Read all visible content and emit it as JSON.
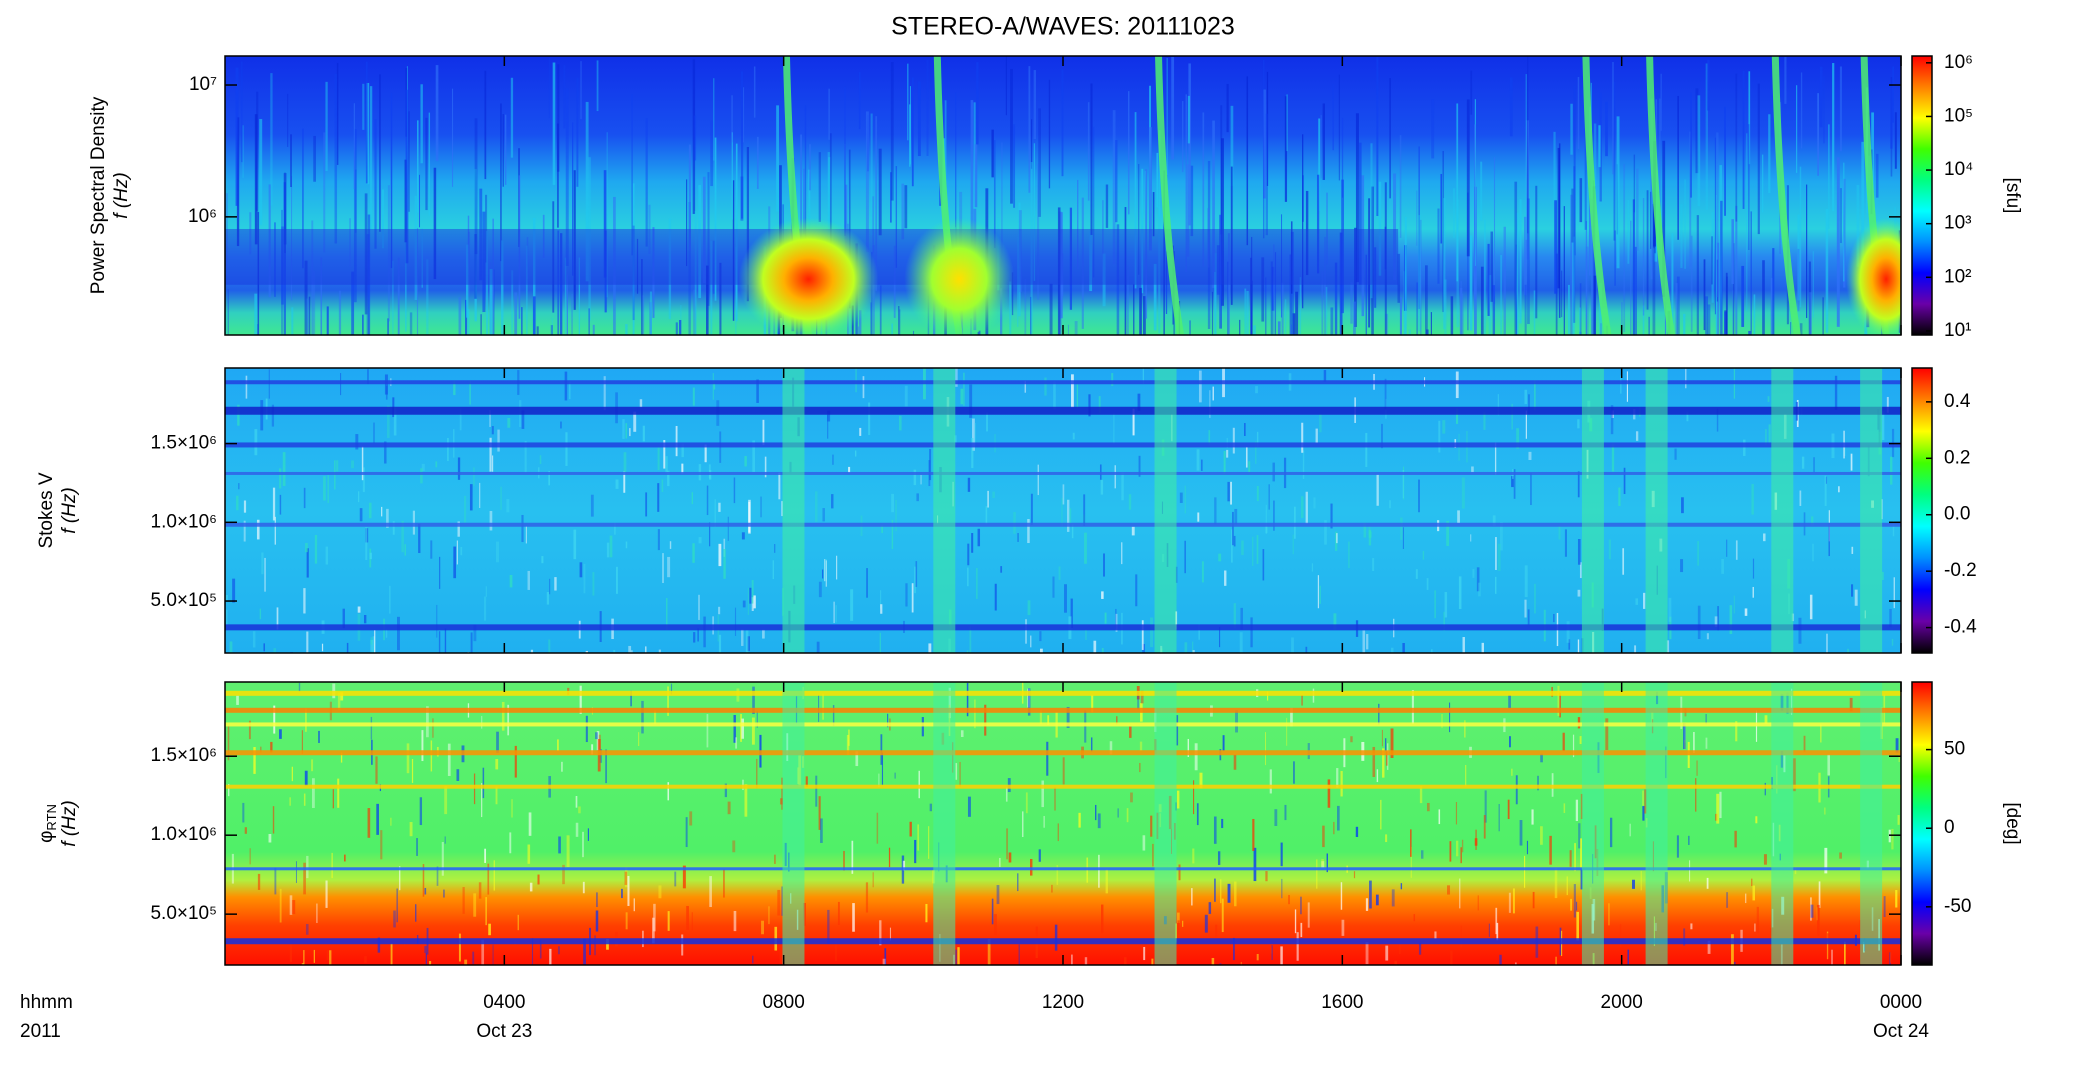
{
  "chart_data": [
    {
      "type": "heatmap",
      "title": "STEREO-A/WAVES: 20111023",
      "ylabel": "Power Spectral Density",
      "ylabel2": "f (Hz)",
      "yscale": "log",
      "ylim": [
        127000,
        16600000
      ],
      "yticks": [
        {
          "value": 1000000,
          "label": "10⁶"
        },
        {
          "value": 10000000,
          "label": "10⁷"
        }
      ],
      "cscale": "log",
      "clim": [
        8.4,
        1340000
      ],
      "cticks": [
        {
          "value": 10,
          "label": "10¹"
        },
        {
          "value": 100,
          "label": "10²"
        },
        {
          "value": 1000,
          "label": "10³"
        },
        {
          "value": 10000,
          "label": "10⁴"
        },
        {
          "value": 100000,
          "label": "10⁵"
        },
        {
          "value": 1000000,
          "label": "10⁶"
        }
      ],
      "clabel": "[sfu]",
      "colormap": [
        "#000000",
        "#6a00a8",
        "#0000ff",
        "#0090ff",
        "#00ffff",
        "#00ff80",
        "#40ff00",
        "#ffff00",
        "#ff8000",
        "#ff0000"
      ]
    },
    {
      "type": "heatmap",
      "ylabel": "Stokes V",
      "ylabel2": "f (Hz)",
      "yscale": "linear",
      "ylim": [
        170000,
        1980000
      ],
      "yticks": [
        {
          "value": 500000,
          "label": "5.0×10⁵"
        },
        {
          "value": 1000000,
          "label": "1.0×10⁶"
        },
        {
          "value": 1500000,
          "label": "1.5×10⁶"
        }
      ],
      "cscale": "linear",
      "clim": [
        -0.49,
        0.52
      ],
      "cticks": [
        -0.4,
        -0.2,
        {
          "value": 0,
          "label": "0.0"
        },
        0.2,
        0.4
      ],
      "colormap": [
        "#000000",
        "#6a00a8",
        "#0000ff",
        "#0090ff",
        "#00ffff",
        "#00ff80",
        "#40ff00",
        "#ffff00",
        "#ff8000",
        "#ff0000"
      ]
    },
    {
      "type": "heatmap",
      "ylabel": "φ",
      "ylabel_sub": "RTN",
      "ylabel2": "f (Hz)",
      "yscale": "linear",
      "ylim": [
        178000,
        1970000
      ],
      "yticks": [
        {
          "value": 500000,
          "label": "5.0×10⁵"
        },
        {
          "value": 1000000,
          "label": "1.0×10⁶"
        },
        {
          "value": 1500000,
          "label": "1.5×10⁶"
        }
      ],
      "cscale": "linear",
      "clim": [
        -87,
        93
      ],
      "cticks": [
        -50,
        0,
        50
      ],
      "clabel": "[deg]",
      "colormap": [
        "#000000",
        "#6a00a8",
        "#0000ff",
        "#0090ff",
        "#00ffff",
        "#00ff80",
        "#40ff00",
        "#ffff00",
        "#ff8000",
        "#ff0000"
      ],
      "xlabel": "hhmm",
      "xlabel2": "2011",
      "xlim": [
        0,
        24
      ],
      "xticks": [
        {
          "value": 4,
          "label": "0400"
        },
        {
          "value": 8,
          "label": "0800"
        },
        {
          "value": 12,
          "label": "1200"
        },
        {
          "value": 16,
          "label": "1600"
        },
        {
          "value": 20,
          "label": "2000"
        },
        {
          "value": 24,
          "label": "0000"
        }
      ],
      "xdates": [
        {
          "value": 4,
          "label": "Oct 23"
        },
        {
          "value": 24,
          "label": "Oct 24"
        }
      ]
    }
  ]
}
